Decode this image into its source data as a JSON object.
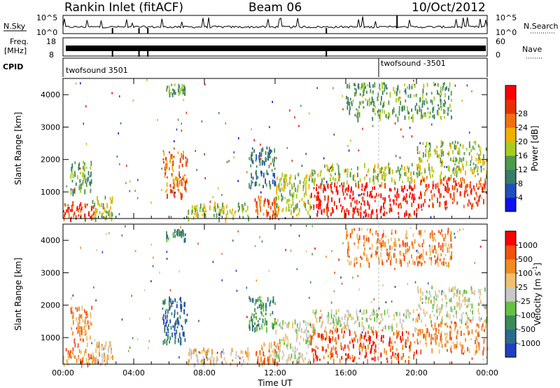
{
  "header": {
    "station": "Rankin Inlet (fitACF)",
    "beam": "Beam 06",
    "date": "10/Oct/2012"
  },
  "strip_labels": {
    "nsky": "N.Sky",
    "nsky_top": "10^5",
    "nsky_bottom": "10^0",
    "nsearch": "N.Search",
    "nsearch_top": "10^5",
    "nsearch_bottom": "10^0",
    "freq": "Freq.",
    "freq_unit": "[MHz]",
    "freq_top": "18",
    "freq_bottom": "8",
    "nave": "Nave",
    "nave_top": "60",
    "nave_bottom": "0",
    "cpid": "CPID",
    "cpid_1": "twofsound 3501",
    "cpid_2": "twofsound -3501"
  },
  "chart_data": [
    {
      "type": "heatmap",
      "name": "power",
      "ylabel": "Slant Range [km]",
      "x_ticks": [
        "00:00",
        "04:00",
        "08:00",
        "12:00",
        "16:00",
        "20:00",
        "00:00"
      ],
      "x_range_hours": [
        0,
        24
      ],
      "y_ticks": [
        1000,
        2000,
        3000,
        4000
      ],
      "ylim": [
        180,
        4500
      ],
      "colorbar": {
        "label": "Power [dB]",
        "ticks": [
          4,
          8,
          12,
          16,
          20,
          24,
          28
        ],
        "colors": [
          "#1010f0",
          "#1f50b8",
          "#3a7a68",
          "#4e9a4e",
          "#a8cc20",
          "#f0b000",
          "#f07010",
          "#e83000",
          "#ff0000"
        ]
      },
      "regions": [
        {
          "t0": 0.0,
          "t1": 1.8,
          "r0": 200,
          "r1": 700,
          "level": 7
        },
        {
          "t0": 0.4,
          "t1": 1.6,
          "r0": 1000,
          "r1": 2000,
          "level": 3
        },
        {
          "t0": 1.6,
          "t1": 2.8,
          "r0": 200,
          "r1": 900,
          "level": 4
        },
        {
          "t0": 5.6,
          "t1": 7.0,
          "r0": 900,
          "r1": 2300,
          "level": 6
        },
        {
          "t0": 5.8,
          "t1": 6.9,
          "r0": 4050,
          "r1": 4350,
          "level": 3
        },
        {
          "t0": 7.0,
          "t1": 10.5,
          "r0": 200,
          "r1": 700,
          "level": 4
        },
        {
          "t0": 10.5,
          "t1": 12.0,
          "r0": 1200,
          "r1": 2400,
          "level": 2
        },
        {
          "t0": 10.8,
          "t1": 12.2,
          "r0": 200,
          "r1": 900,
          "level": 6
        },
        {
          "t0": 12.0,
          "t1": 14.0,
          "r0": 300,
          "r1": 1600,
          "level": 4
        },
        {
          "t0": 14.0,
          "t1": 20.0,
          "r0": 300,
          "r1": 1300,
          "level": 8
        },
        {
          "t0": 14.0,
          "t1": 20.0,
          "r0": 1300,
          "r1": 1900,
          "level": 4
        },
        {
          "t0": 20.0,
          "t1": 24.0,
          "r0": 600,
          "r1": 1500,
          "level": 7
        },
        {
          "t0": 20.0,
          "t1": 24.0,
          "r0": 1500,
          "r1": 2600,
          "level": 4
        },
        {
          "t0": 16.0,
          "t1": 22.0,
          "r0": 3300,
          "r1": 4400,
          "level": 3
        }
      ]
    },
    {
      "type": "heatmap",
      "name": "velocity",
      "ylabel": "Slant Range [km]",
      "xlabel": "Time UT",
      "x_ticks": [
        "00:00",
        "04:00",
        "08:00",
        "12:00",
        "16:00",
        "20:00",
        "00:00"
      ],
      "x_range_hours": [
        0,
        24
      ],
      "y_ticks": [
        1000,
        2000,
        3000,
        4000
      ],
      "ylim": [
        180,
        4500
      ],
      "colorbar": {
        "label": "Velocity [m s^-1]",
        "ticks": [
          1000,
          500,
          100,
          25,
          -25,
          -100,
          -500,
          -1000
        ],
        "colors": [
          "#2040c0",
          "#2d6a8a",
          "#3a8a5a",
          "#66c044",
          "#c8c8c8",
          "#f0c070",
          "#f08c20",
          "#f05010",
          "#ff0000"
        ]
      },
      "regions": [
        {
          "t0": 0.0,
          "t1": 1.8,
          "r0": 200,
          "r1": 700,
          "level": 6
        },
        {
          "t0": 0.4,
          "t1": 1.6,
          "r0": 800,
          "r1": 2000,
          "level": 6
        },
        {
          "t0": 1.6,
          "t1": 2.8,
          "r0": 200,
          "r1": 900,
          "level": 5
        },
        {
          "t0": 5.6,
          "t1": 7.0,
          "r0": 900,
          "r1": 2300,
          "level": 1
        },
        {
          "t0": 5.8,
          "t1": 6.9,
          "r0": 4050,
          "r1": 4350,
          "level": 2
        },
        {
          "t0": 7.0,
          "t1": 10.5,
          "r0": 200,
          "r1": 700,
          "level": 5
        },
        {
          "t0": 10.5,
          "t1": 12.0,
          "r0": 1300,
          "r1": 2300,
          "level": 2
        },
        {
          "t0": 10.8,
          "t1": 12.2,
          "r0": 200,
          "r1": 900,
          "level": 6
        },
        {
          "t0": 12.0,
          "t1": 14.0,
          "r0": 300,
          "r1": 1600,
          "level": 4
        },
        {
          "t0": 14.0,
          "t1": 20.0,
          "r0": 300,
          "r1": 1300,
          "level": 7
        },
        {
          "t0": 14.0,
          "t1": 20.0,
          "r0": 1300,
          "r1": 1900,
          "level": 4
        },
        {
          "t0": 20.0,
          "t1": 24.0,
          "r0": 600,
          "r1": 1500,
          "level": 6
        },
        {
          "t0": 20.0,
          "t1": 24.0,
          "r0": 1500,
          "r1": 2600,
          "level": 4
        },
        {
          "t0": 16.0,
          "t1": 22.0,
          "r0": 3300,
          "r1": 4400,
          "level": 6
        }
      ]
    }
  ]
}
